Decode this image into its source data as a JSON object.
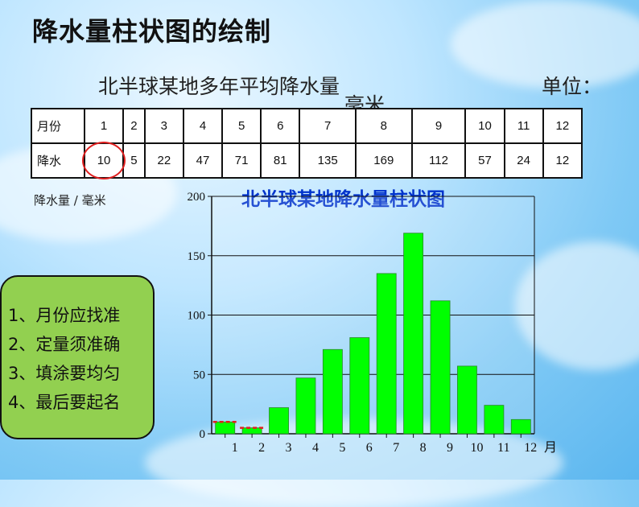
{
  "title": "降水量柱状图的绘制",
  "table": {
    "caption": "北半球某地多年平均降水量",
    "unit_label": "单位：",
    "unit_value": "毫米",
    "row1_label": "月份",
    "row2_label": "降水",
    "months": [
      "1",
      "2",
      "3",
      "4",
      "5",
      "6",
      "7",
      "8",
      "9",
      "10",
      "11",
      "12"
    ],
    "values": [
      "10",
      "5",
      "22",
      "47",
      "71",
      "81",
      "135",
      "169",
      "112",
      "57",
      "24",
      "12"
    ]
  },
  "tips": [
    "1、月份应找准",
    "2、定量须准确",
    "3、填涂要均匀",
    "4、最后要起名"
  ],
  "colors": {
    "bar": "#00ff00",
    "title": "#0033cc",
    "highlight": "#e02020",
    "tips_bg": "#92d050"
  },
  "chart_data": {
    "type": "bar",
    "title": "北半球某地降水量柱状图",
    "ylabel": "降水量 / 毫米",
    "xlabel": "月",
    "categories": [
      "1",
      "2",
      "3",
      "4",
      "5",
      "6",
      "7",
      "8",
      "9",
      "10",
      "11",
      "12"
    ],
    "values": [
      10,
      5,
      22,
      47,
      71,
      81,
      135,
      169,
      112,
      57,
      24,
      12
    ],
    "ylim": [
      0,
      200
    ],
    "yticks": [
      0,
      50,
      100,
      150,
      200
    ],
    "grid": true
  }
}
